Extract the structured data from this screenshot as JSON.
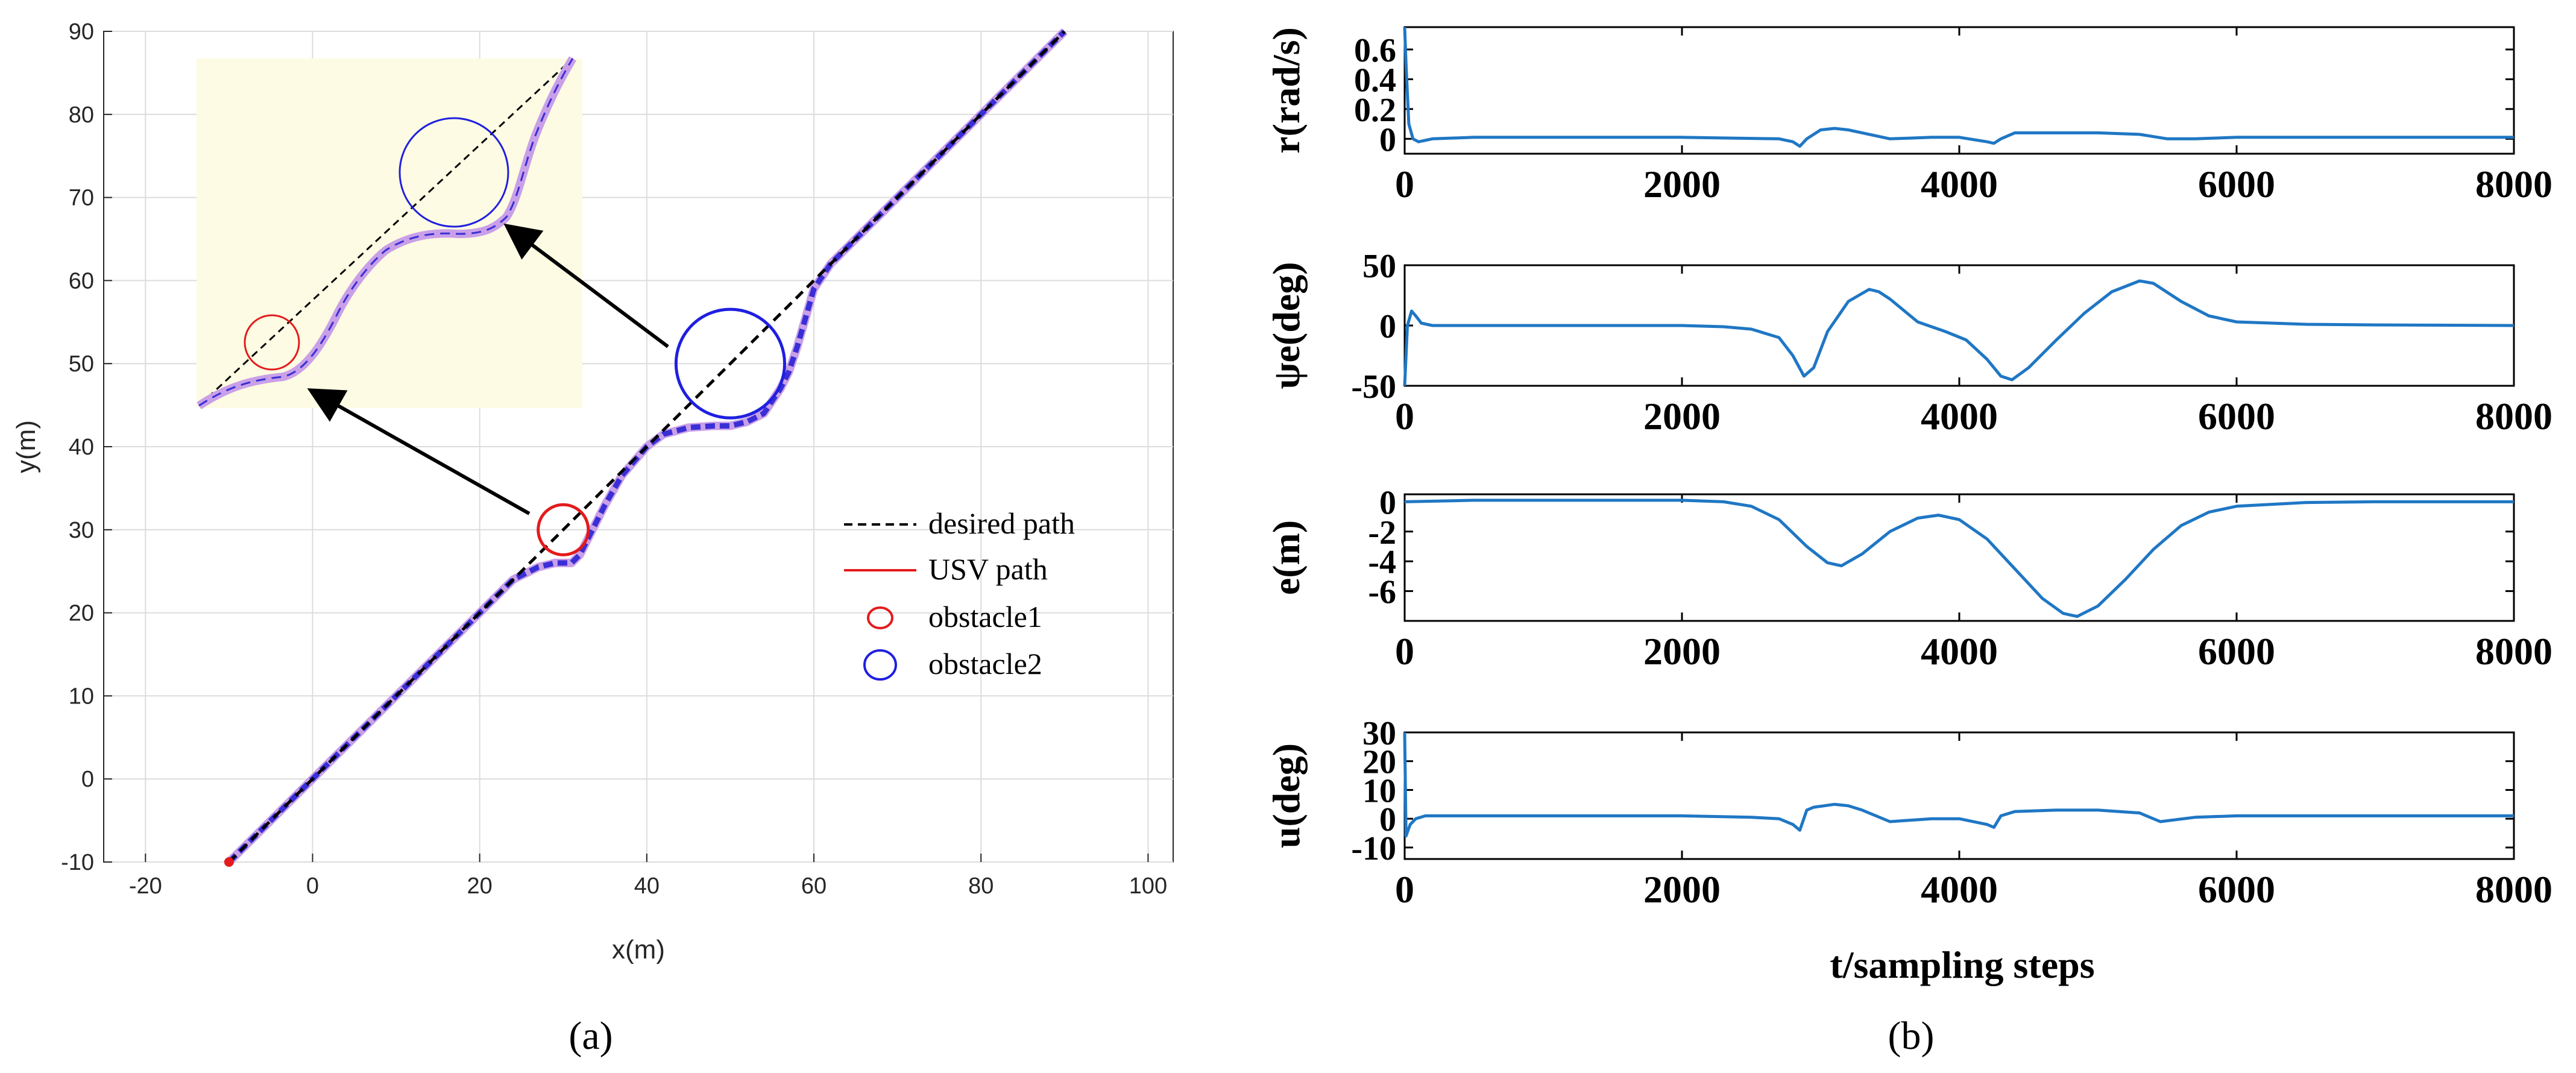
{
  "colors": {
    "desired": "#000000",
    "usv": "#e41a1c",
    "usv_track": "#3a2fd6",
    "obstacle1": "#e41a1c",
    "obstacle2": "#1f1fe0",
    "series_b": "#1f77c4",
    "inset_bg": "#fdfbe3",
    "inset_fill": "#c9a0e8"
  },
  "captions": {
    "a": "(a)",
    "b": "(b)"
  },
  "chart_data": [
    {
      "id": "a",
      "type": "line",
      "xlabel": "x(m)",
      "ylabel": "y(m)",
      "xlim": [
        -25,
        103
      ],
      "ylim": [
        -10,
        90
      ],
      "xticks": [
        -20,
        0,
        20,
        40,
        60,
        80,
        100
      ],
      "yticks": [
        -10,
        0,
        10,
        20,
        30,
        40,
        50,
        60,
        70,
        80,
        90
      ],
      "grid": true,
      "legend_position": "right",
      "legend": [
        {
          "label": "desired path",
          "style": "dashed-line"
        },
        {
          "label": "USV path",
          "style": "red-line"
        },
        {
          "label": "obstacle1",
          "style": "red-circle"
        },
        {
          "label": "obstacle2",
          "style": "blue-circle"
        }
      ],
      "series": [
        {
          "name": "desired path",
          "x": [
            -10,
            90
          ],
          "y": [
            -10,
            90
          ]
        },
        {
          "name": "USV path",
          "x": [
            -10,
            0,
            10,
            20,
            24,
            27,
            29,
            31,
            32,
            33,
            35,
            37,
            40,
            42,
            45,
            48,
            50,
            52,
            54,
            56,
            57,
            58,
            59,
            60,
            62,
            65,
            70,
            80,
            90
          ],
          "y": [
            -10,
            0,
            10,
            20,
            24,
            25.5,
            26,
            26,
            27,
            29,
            33,
            36.5,
            40,
            41.5,
            42.3,
            42.5,
            42.5,
            43,
            44,
            47,
            49,
            52,
            55.5,
            59,
            62,
            65,
            70,
            80,
            90
          ]
        }
      ],
      "obstacles": [
        {
          "name": "obstacle1",
          "center": [
            30,
            30
          ],
          "radius": 3
        },
        {
          "name": "obstacle2",
          "center": [
            50,
            50
          ],
          "radius": 6.5
        }
      ],
      "annotations": [
        "zoomed inset of USV path around obstacles (two arrows pointing from obstacles into inset)"
      ]
    },
    {
      "id": "b1",
      "type": "line",
      "ylabel": "r(rad/s)",
      "xlim": [
        0,
        8000
      ],
      "ylim": [
        -0.1,
        0.75
      ],
      "xticks": [
        0,
        2000,
        4000,
        6000,
        8000
      ],
      "yticks": [
        0,
        0.2,
        0.4,
        0.6
      ],
      "ytick_labels": [
        "0",
        "0.2",
        "0.4",
        "0.6"
      ],
      "x": [
        0,
        10,
        30,
        60,
        100,
        200,
        500,
        1500,
        2000,
        2700,
        2800,
        2850,
        2900,
        3000,
        3100,
        3200,
        3300,
        3500,
        3800,
        4000,
        4200,
        4250,
        4300,
        4400,
        4700,
        5000,
        5300,
        5500,
        5700,
        6000,
        7000,
        8000
      ],
      "values": [
        0.75,
        0.5,
        0.1,
        0.0,
        -0.02,
        0.0,
        0.01,
        0.01,
        0.01,
        0.0,
        -0.02,
        -0.05,
        0.0,
        0.06,
        0.07,
        0.06,
        0.04,
        0.0,
        0.01,
        0.01,
        -0.02,
        -0.03,
        0.0,
        0.04,
        0.04,
        0.04,
        0.03,
        0.0,
        0.0,
        0.01,
        0.01,
        0.01
      ]
    },
    {
      "id": "b2",
      "type": "line",
      "ylabel": "ψe(deg)",
      "xlim": [
        0,
        8000
      ],
      "ylim": [
        -50,
        50
      ],
      "xticks": [
        0,
        2000,
        4000,
        6000,
        8000
      ],
      "yticks": [
        -50,
        0,
        50
      ],
      "x": [
        0,
        20,
        50,
        80,
        120,
        200,
        500,
        1500,
        2000,
        2300,
        2500,
        2700,
        2800,
        2880,
        2950,
        3050,
        3200,
        3350,
        3420,
        3500,
        3700,
        3900,
        4050,
        4200,
        4300,
        4380,
        4500,
        4700,
        4900,
        5100,
        5300,
        5400,
        5600,
        5800,
        6000,
        6500,
        7000,
        8000
      ],
      "values": [
        -50,
        0,
        12,
        8,
        2,
        0,
        0,
        0,
        0,
        -1,
        -3,
        -10,
        -25,
        -42,
        -35,
        -5,
        20,
        30,
        28,
        22,
        3,
        -5,
        -12,
        -28,
        -42,
        -45,
        -35,
        -12,
        10,
        28,
        37,
        35,
        20,
        8,
        3,
        1,
        0.5,
        0
      ]
    },
    {
      "id": "b3",
      "type": "line",
      "ylabel": "e(m)",
      "xlim": [
        0,
        8000
      ],
      "ylim": [
        -8,
        0.5
      ],
      "xticks": [
        0,
        2000,
        4000,
        6000,
        8000
      ],
      "yticks": [
        -6,
        -4,
        -2,
        0
      ],
      "x": [
        0,
        500,
        1500,
        2000,
        2300,
        2500,
        2700,
        2900,
        3050,
        3150,
        3300,
        3500,
        3700,
        3850,
        4000,
        4200,
        4400,
        4600,
        4750,
        4850,
        5000,
        5200,
        5400,
        5600,
        5800,
        6000,
        6500,
        7000,
        8000
      ],
      "values": [
        0,
        0.1,
        0.1,
        0.1,
        0,
        -0.3,
        -1.2,
        -3.0,
        -4.1,
        -4.3,
        -3.5,
        -2.0,
        -1.1,
        -0.9,
        -1.2,
        -2.5,
        -4.5,
        -6.5,
        -7.5,
        -7.7,
        -7.0,
        -5.2,
        -3.2,
        -1.6,
        -0.7,
        -0.3,
        -0.05,
        0,
        0
      ]
    },
    {
      "id": "b4",
      "type": "line",
      "ylabel": "u(deg)",
      "xlim": [
        0,
        8000
      ],
      "ylim": [
        -14,
        30
      ],
      "xticks": [
        0,
        2000,
        4000,
        6000,
        8000
      ],
      "yticks": [
        -10,
        0,
        10,
        20,
        30
      ],
      "xlabel": "t/sampling steps",
      "x": [
        0,
        10,
        40,
        80,
        150,
        300,
        800,
        2000,
        2500,
        2700,
        2800,
        2850,
        2900,
        2950,
        3100,
        3200,
        3300,
        3500,
        3800,
        4000,
        4200,
        4250,
        4300,
        4400,
        4700,
        5000,
        5300,
        5450,
        5700,
        6000,
        7000,
        8000
      ],
      "values": [
        30,
        -6,
        -2,
        0,
        1,
        1,
        1,
        1,
        0.5,
        0,
        -2,
        -4,
        3,
        4,
        5,
        4.5,
        3,
        -1,
        0,
        0,
        -2,
        -3,
        1,
        2.5,
        3,
        3,
        2,
        -1,
        0.5,
        1,
        1,
        1
      ]
    }
  ]
}
